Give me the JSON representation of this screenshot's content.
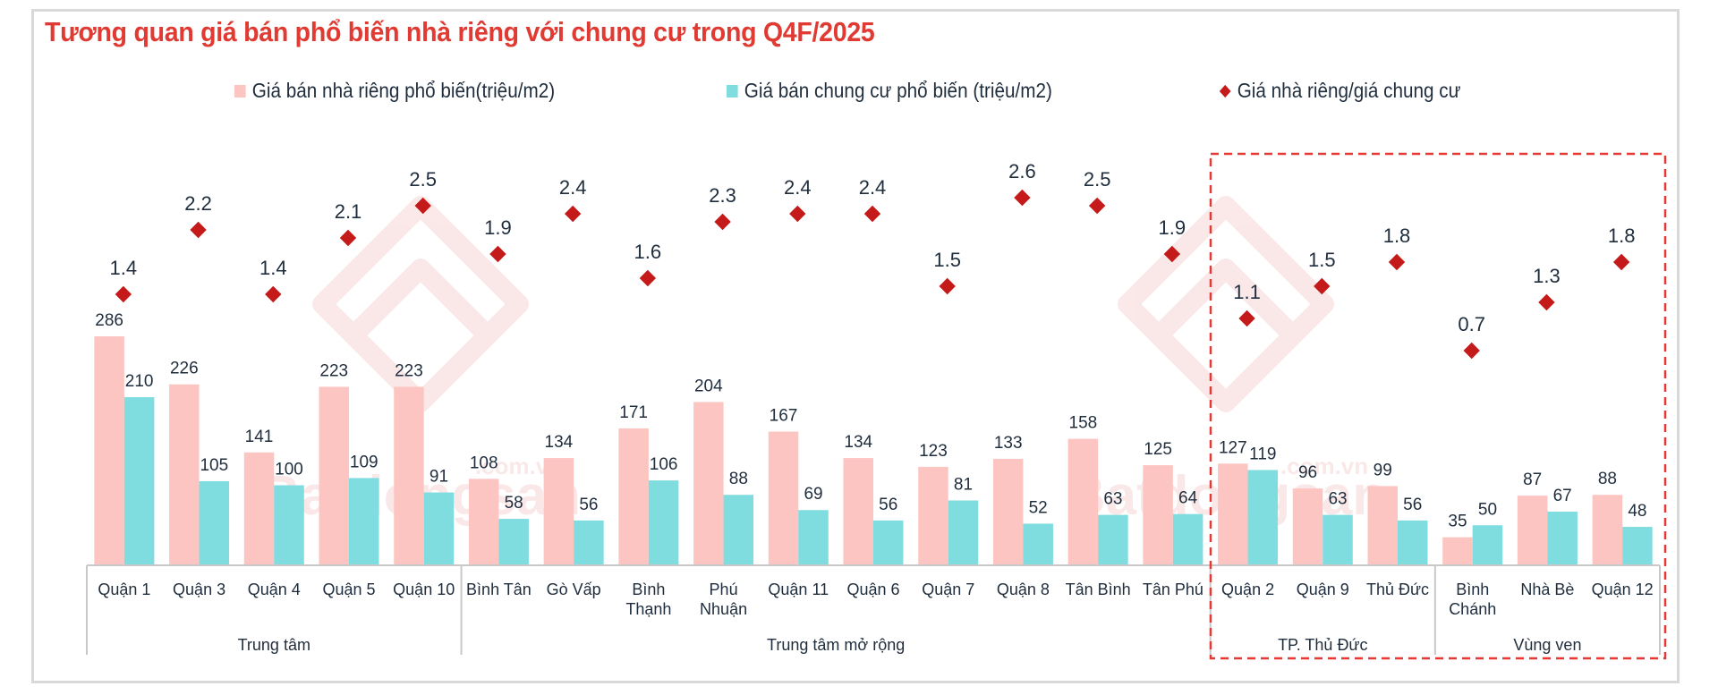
{
  "title": "Tương quan giá bán phổ biến nhà riêng với chung cư trong Q4F/2025",
  "colors": {
    "title": "#e03a33",
    "house": "#fdc5c2",
    "apartment": "#7fdcdf",
    "ratio": "#c41a1a",
    "highlight_box": "#e53935",
    "text": "#1f2d3d",
    "axis": "#c8c8c8"
  },
  "legend": [
    {
      "label": "Giá bán nhà riêng phổ biến(triệu/m2)",
      "marker": "square",
      "color": "#fdc5c2"
    },
    {
      "label": "Giá bán chung cư phổ biến (triệu/m2)",
      "marker": "square",
      "color": "#7fdcdf"
    },
    {
      "label": "Giá nhà riêng/giá chung cư",
      "marker": "diamond",
      "color": "#c41a1a"
    }
  ],
  "watermark": {
    "brand": "Batdongsan",
    "domain": ".com.vn"
  },
  "chart_data": {
    "type": "bar",
    "title": "Tương quan giá bán phổ biến nhà riêng với chung cư trong Q4F/2025",
    "xlabel": "",
    "ylabel": "",
    "categories": [
      "Quận 1",
      "Quận 3",
      "Quận 4",
      "Quận 5",
      "Quận 10",
      "Bình Tân",
      "Gò Vấp",
      "Bình Thạnh",
      "Phú Nhuận",
      "Quận 11",
      "Quận 6",
      "Quận 7",
      "Quận 8",
      "Tân Bình",
      "Tân Phú",
      "Quận 2",
      "Quận 9",
      "Thủ Đức",
      "Bình Chánh",
      "Nhà Bè",
      "Quận 12"
    ],
    "groups": [
      {
        "label": "Trung tâm",
        "categories": [
          "Quận 1",
          "Quận 3",
          "Quận 4",
          "Quận 5",
          "Quận 10"
        ]
      },
      {
        "label": "Trung tâm mở rộng",
        "categories": [
          "Bình Tân",
          "Gò Vấp",
          "Bình Thạnh",
          "Phú Nhuận",
          "Quận 11",
          "Quận 6",
          "Quận 7",
          "Quận 8",
          "Tân Bình",
          "Tân Phú"
        ]
      },
      {
        "label": "TP. Thủ Đức",
        "categories": [
          "Quận 2",
          "Quận 9",
          "Thủ Đức"
        ]
      },
      {
        "label": "Vùng ven",
        "categories": [
          "Bình Chánh",
          "Nhà Bè",
          "Quận 12"
        ]
      }
    ],
    "series": [
      {
        "name": "Giá bán nhà riêng phổ biến(triệu/m2)",
        "type": "bar",
        "values": [
          286,
          226,
          141,
          223,
          223,
          108,
          134,
          171,
          204,
          167,
          134,
          123,
          133,
          158,
          125,
          127,
          96,
          99,
          35,
          87,
          88
        ]
      },
      {
        "name": "Giá bán chung cư phổ biến (triệu/m2)",
        "type": "bar",
        "values": [
          210,
          105,
          100,
          109,
          91,
          58,
          56,
          106,
          88,
          69,
          56,
          81,
          52,
          63,
          64,
          119,
          63,
          56,
          50,
          67,
          48
        ]
      },
      {
        "name": "Giá nhà riêng/giá chung cư",
        "type": "scatter",
        "axis": "secondary",
        "values": [
          1.4,
          2.2,
          1.4,
          2.1,
          2.5,
          1.9,
          2.4,
          1.6,
          2.3,
          2.4,
          2.4,
          1.5,
          2.6,
          2.5,
          1.9,
          1.1,
          1.5,
          1.8,
          0.7,
          1.3,
          1.8
        ]
      }
    ],
    "highlight": {
      "style": "dashed-box",
      "groups": [
        "TP. Thủ Đức",
        "Vùng ven"
      ]
    },
    "grid": false,
    "legend_position": "top"
  }
}
